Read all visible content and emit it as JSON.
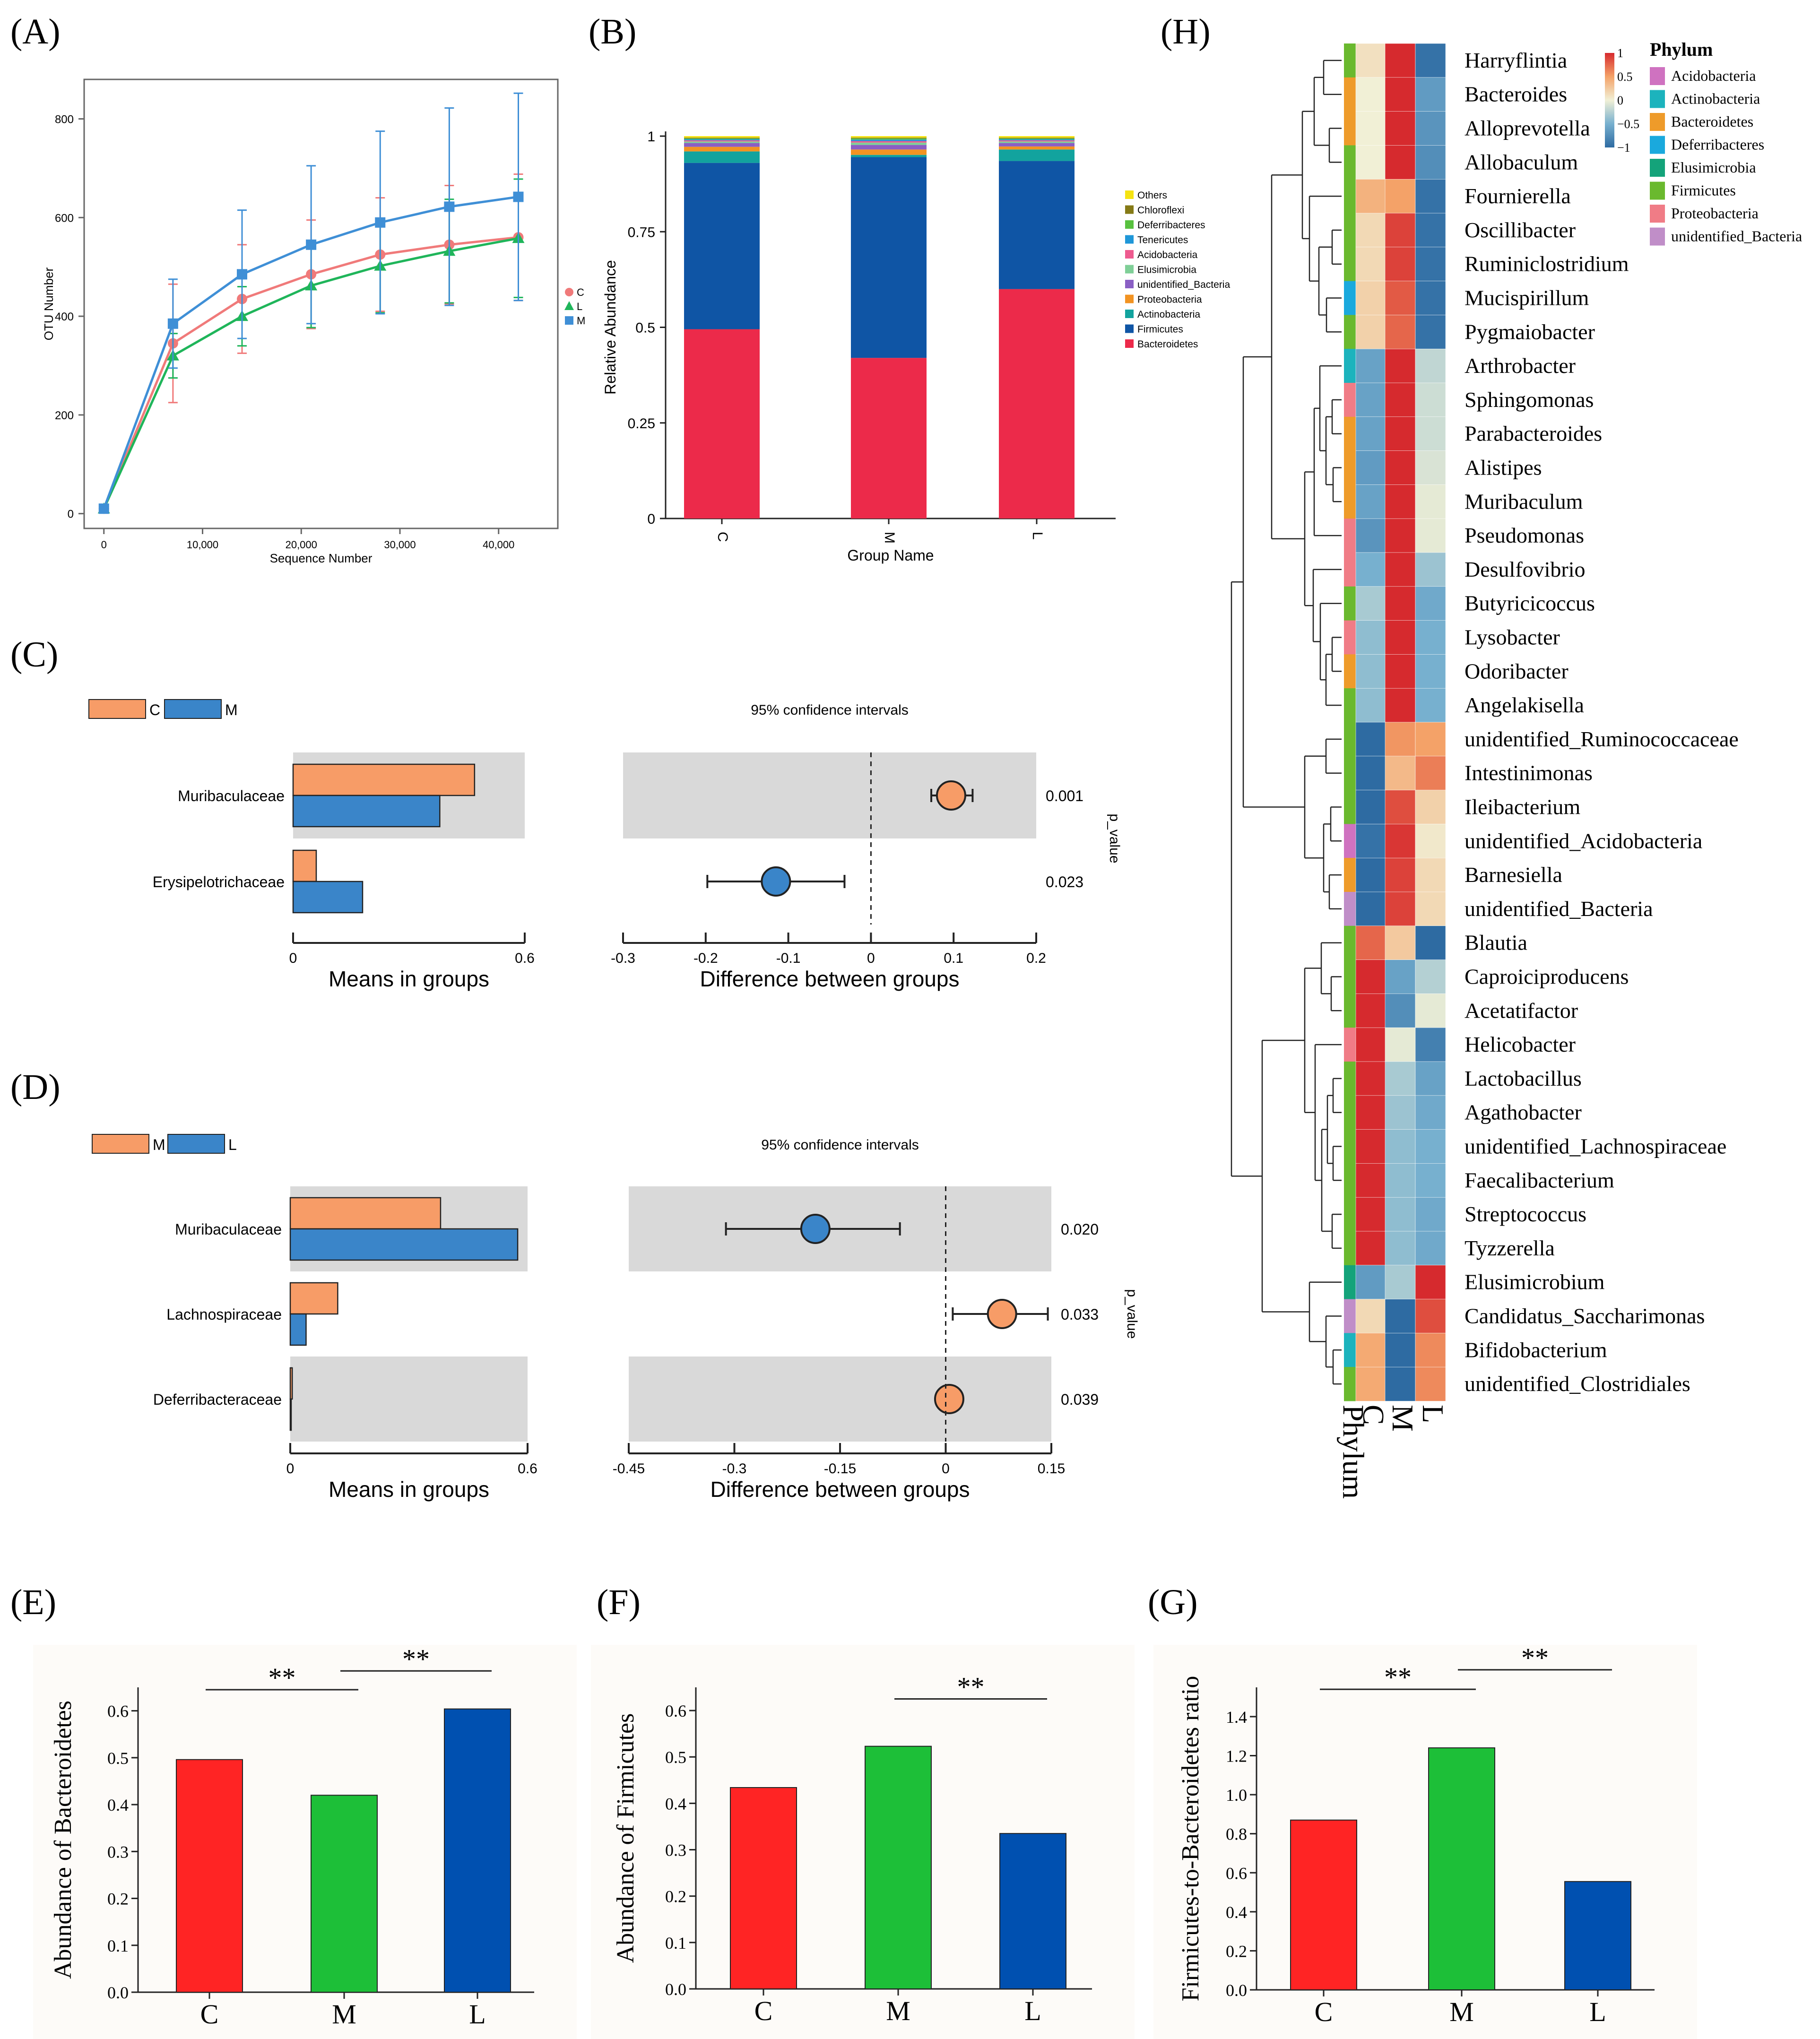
{
  "panel_labels": {
    "A": "(A)",
    "B": "(B)",
    "C": "(C)",
    "D": "(D)",
    "E": "(E)",
    "F": "(F)",
    "G": "(G)",
    "H": "(H)"
  },
  "chart_data": [
    {
      "id": "A",
      "type": "line",
      "xlabel": "Sequence Number",
      "ylabel": "OTU Number",
      "xlim": [
        -2000,
        46000
      ],
      "ylim": [
        -30,
        880
      ],
      "xticks": [
        0,
        10000,
        20000,
        30000,
        40000
      ],
      "xtick_labels": [
        "0",
        "10,000",
        "20,000",
        "30,000",
        "40,000"
      ],
      "yticks": [
        0,
        200,
        400,
        600,
        800
      ],
      "x": [
        0,
        7000,
        14000,
        21000,
        28000,
        35000,
        42000
      ],
      "series": [
        {
          "name": "C",
          "color": "#f07a7a",
          "marker": "circle",
          "values": [
            10,
            345,
            435,
            485,
            525,
            545,
            560
          ],
          "err": [
            0,
            120,
            110,
            110,
            115,
            120,
            128
          ]
        },
        {
          "name": "L",
          "color": "#1fb55a",
          "marker": "triangle",
          "values": [
            10,
            320,
            400,
            462,
            502,
            532,
            558
          ],
          "err": [
            0,
            45,
            60,
            85,
            95,
            105,
            120
          ]
        },
        {
          "name": "M",
          "color": "#3f8fd6",
          "marker": "square",
          "values": [
            10,
            385,
            485,
            545,
            590,
            622,
            642
          ],
          "err": [
            0,
            90,
            130,
            160,
            185,
            200,
            210
          ]
        }
      ],
      "legend": [
        "C",
        "L",
        "M"
      ]
    },
    {
      "id": "B",
      "type": "bar",
      "stacked": true,
      "xlabel": "Group Name",
      "ylabel": "Relative Abundance",
      "categories": [
        "C",
        "M",
        "L"
      ],
      "yticks": [
        0,
        0.25,
        0.5,
        0.75,
        1
      ],
      "ytick_labels": [
        "0",
        "0.25",
        "0.5",
        "0.75",
        "1"
      ],
      "series": [
        {
          "name": "Bacteroidetes",
          "color": "#ec2a4a",
          "values": [
            0.495,
            0.42,
            0.6
          ]
        },
        {
          "name": "Firmicutes",
          "color": "#0f55a5",
          "values": [
            0.435,
            0.525,
            0.335
          ]
        },
        {
          "name": "Actinobacteria",
          "color": "#12a39e",
          "values": [
            0.03,
            0.006,
            0.03
          ]
        },
        {
          "name": "Proteobacteria",
          "color": "#f29322",
          "values": [
            0.012,
            0.014,
            0.008
          ]
        },
        {
          "name": "unidentified_Bacteria",
          "color": "#8a5fc4",
          "values": [
            0.01,
            0.012,
            0.009
          ]
        },
        {
          "name": "Elusimicrobia",
          "color": "#7fcf97",
          "values": [
            0.004,
            0.006,
            0.004
          ]
        },
        {
          "name": "Acidobacteria",
          "color": "#ee5a8f",
          "values": [
            0.003,
            0.004,
            0.003
          ]
        },
        {
          "name": "Tenericutes",
          "color": "#1f97d8",
          "values": [
            0.003,
            0.004,
            0.003
          ]
        },
        {
          "name": "Deferribacteres",
          "color": "#58c13f",
          "values": [
            0.002,
            0.003,
            0.002
          ]
        },
        {
          "name": "Chloroflexi",
          "color": "#857a16",
          "values": [
            0.002,
            0.002,
            0.002
          ]
        },
        {
          "name": "Others",
          "color": "#f5e311",
          "values": [
            0.004,
            0.004,
            0.004
          ]
        }
      ],
      "legend": [
        "Others",
        "Chloroflexi",
        "Deferribacteres",
        "Tenericutes",
        "Acidobacteria",
        "Elusimicrobia",
        "unidentified_Bacteria",
        "Proteobacteria",
        "Actinobacteria",
        "Firmicutes",
        "Bacteroidetes"
      ]
    },
    {
      "id": "C",
      "type": "bar",
      "legend": [
        "C",
        "M"
      ],
      "left": {
        "xlabel": "Means in groups",
        "xlim": [
          0,
          0.6
        ],
        "xticks": [
          "0",
          "0.6"
        ]
      },
      "right": {
        "title": "95% confidence intervals",
        "xlabel": "Difference between groups",
        "xlim": [
          -0.3,
          0.2
        ],
        "xticks": [
          -0.3,
          -0.2,
          -0.1,
          0,
          0.1,
          0.2
        ],
        "xtick_labels": [
          "-0.3",
          "-0.2",
          "-0.1",
          "0",
          "0.1",
          "0.2"
        ]
      },
      "pvalue_label": "p_value",
      "rows": [
        {
          "name": "Muribaculaceae",
          "g1": 0.47,
          "g2": 0.38,
          "diff": 0.097,
          "ci": [
            0.073,
            0.123
          ],
          "p": "0.001",
          "color": "g1"
        },
        {
          "name": "Erysipelotrichaceae",
          "g1": 0.06,
          "g2": 0.18,
          "diff": -0.115,
          "ci": [
            -0.198,
            -0.032
          ],
          "p": "0.023",
          "color": "g2"
        }
      ]
    },
    {
      "id": "D",
      "type": "bar",
      "legend": [
        "M",
        "L"
      ],
      "left": {
        "xlabel": "Means in groups",
        "xlim": [
          0,
          0.6
        ],
        "xticks": [
          "0",
          "0.6"
        ]
      },
      "right": {
        "title": "95% confidence intervals",
        "xlabel": "Difference between groups",
        "xlim": [
          -0.45,
          0.15
        ],
        "xticks": [
          -0.45,
          -0.3,
          -0.15,
          0,
          0.15
        ],
        "xtick_labels": [
          "-0.45",
          "-0.3",
          "-0.15",
          "0",
          "0.15"
        ]
      },
      "pvalue_label": "p_value",
      "rows": [
        {
          "name": "Muribaculaceae",
          "g1": 0.38,
          "g2": 0.575,
          "diff": -0.185,
          "ci": [
            -0.312,
            -0.065
          ],
          "p": "0.020",
          "color": "g2"
        },
        {
          "name": "Lachnospiraceae",
          "g1": 0.12,
          "g2": 0.04,
          "diff": 0.08,
          "ci": [
            0.01,
            0.145
          ],
          "p": "0.033",
          "color": "g1"
        },
        {
          "name": "Deferribacteraceae",
          "g1": 0.005,
          "g2": 0.001,
          "diff": 0.005,
          "ci": [
            0.0,
            0.012
          ],
          "p": "0.039",
          "color": "g1"
        }
      ]
    },
    {
      "id": "E",
      "type": "bar",
      "ylabel": "Abundance of Bacteroidetes",
      "categories": [
        "C",
        "M",
        "L"
      ],
      "values": [
        0.496,
        0.42,
        0.604
      ],
      "colors": [
        "#ff2424",
        "#1dbf38",
        "#0050b0"
      ],
      "ylim": [
        0,
        0.65
      ],
      "yticks": [
        0,
        0.1,
        0.2,
        0.3,
        0.4,
        0.5,
        0.6
      ],
      "ytick_labels": [
        "0.0",
        "0.1",
        "0.2",
        "0.3",
        "0.4",
        "0.5",
        "0.6"
      ],
      "significance": [
        {
          "from": 0,
          "to": 1,
          "label": "**",
          "y": 0.645
        },
        {
          "from": 1,
          "to": 2,
          "label": "**",
          "y": 0.685
        }
      ]
    },
    {
      "id": "F",
      "type": "bar",
      "ylabel": "Abundance of Firmicutes",
      "categories": [
        "C",
        "M",
        "L"
      ],
      "values": [
        0.434,
        0.523,
        0.335
      ],
      "colors": [
        "#ff2424",
        "#1dbf38",
        "#0050b0"
      ],
      "ylim": [
        0,
        0.65
      ],
      "yticks": [
        0,
        0.1,
        0.2,
        0.3,
        0.4,
        0.5,
        0.6
      ],
      "ytick_labels": [
        "0.0",
        "0.1",
        "0.2",
        "0.3",
        "0.4",
        "0.5",
        "0.6"
      ],
      "significance": [
        {
          "from": 1,
          "to": 2,
          "label": "**",
          "y": 0.625
        }
      ]
    },
    {
      "id": "G",
      "type": "bar",
      "ylabel": "Firmicutes-to-Bacteroidetes ratio",
      "categories": [
        "C",
        "M",
        "L"
      ],
      "values": [
        0.87,
        1.24,
        0.555
      ],
      "colors": [
        "#ff2424",
        "#1dbf38",
        "#0050b0"
      ],
      "ylim": [
        0,
        1.55
      ],
      "yticks": [
        0,
        0.2,
        0.4,
        0.6,
        0.8,
        1.0,
        1.2,
        1.4
      ],
      "ytick_labels": [
        "0.0",
        "0.2",
        "0.4",
        "0.6",
        "0.8",
        "1.0",
        "1.2",
        "1.4"
      ],
      "significance": [
        {
          "from": 0,
          "to": 1,
          "label": "**",
          "y": 1.54
        },
        {
          "from": 1,
          "to": 2,
          "label": "**",
          "y": 1.64
        }
      ]
    },
    {
      "id": "H",
      "type": "heatmap",
      "columns": [
        "C",
        "M",
        "L"
      ],
      "column_header": "Phylum",
      "colorbar": {
        "ticks": [
          "1",
          "0.5",
          "0",
          "−0.5",
          "−1"
        ]
      },
      "legend_title": "Phylum",
      "phyla": [
        {
          "name": "Acidobacteria",
          "color": "#cf72c0"
        },
        {
          "name": "Actinobacteria",
          "color": "#1cb3bd"
        },
        {
          "name": "Bacteroidetes",
          "color": "#ee9b2a"
        },
        {
          "name": "Deferribacteres",
          "color": "#1aa9dd"
        },
        {
          "name": "Elusimicrobia",
          "color": "#14a37a"
        },
        {
          "name": "Firmicutes",
          "color": "#6ab92e"
        },
        {
          "name": "Proteobacteria",
          "color": "#f07c86"
        },
        {
          "name": "unidentified_Bacteria",
          "color": "#c08ec8"
        }
      ],
      "rows": [
        {
          "name": "Harryflintia",
          "phylum": 5,
          "values": [
            0.1,
            1.0,
            -0.95
          ]
        },
        {
          "name": "Bacteroides",
          "phylum": 2,
          "values": [
            0.0,
            1.0,
            -0.65
          ]
        },
        {
          "name": "Alloprevotella",
          "phylum": 2,
          "values": [
            0.0,
            1.0,
            -0.7
          ]
        },
        {
          "name": "Allobaculum",
          "phylum": 5,
          "values": [
            0.0,
            1.0,
            -0.75
          ]
        },
        {
          "name": "Fournierella",
          "phylum": 5,
          "values": [
            0.4,
            0.5,
            -0.95
          ]
        },
        {
          "name": "Oscillibacter",
          "phylum": 5,
          "values": [
            0.15,
            0.9,
            -0.95
          ]
        },
        {
          "name": "Ruminiclostridium",
          "phylum": 5,
          "values": [
            0.15,
            0.9,
            -0.95
          ]
        },
        {
          "name": "Mucispirillum",
          "phylum": 3,
          "values": [
            0.2,
            0.8,
            -0.95
          ]
        },
        {
          "name": "Pygmaiobacter",
          "phylum": 5,
          "values": [
            0.2,
            0.75,
            -0.95
          ]
        },
        {
          "name": "Arthrobacter",
          "phylum": 1,
          "values": [
            -0.6,
            1.0,
            -0.2
          ]
        },
        {
          "name": "Sphingomonas",
          "phylum": 6,
          "values": [
            -0.6,
            1.0,
            -0.15
          ]
        },
        {
          "name": "Parabacteroides",
          "phylum": 2,
          "values": [
            -0.6,
            1.0,
            -0.15
          ]
        },
        {
          "name": "Alistipes",
          "phylum": 2,
          "values": [
            -0.65,
            1.0,
            -0.1
          ]
        },
        {
          "name": "Muribaculum",
          "phylum": 2,
          "values": [
            -0.6,
            1.0,
            -0.05
          ]
        },
        {
          "name": "Pseudomonas",
          "phylum": 6,
          "values": [
            -0.7,
            1.0,
            -0.05
          ]
        },
        {
          "name": "Desulfovibrio",
          "phylum": 6,
          "values": [
            -0.5,
            1.0,
            -0.35
          ]
        },
        {
          "name": "Butyricicoccus",
          "phylum": 5,
          "values": [
            -0.3,
            1.0,
            -0.55
          ]
        },
        {
          "name": "Lysobacter",
          "phylum": 6,
          "values": [
            -0.4,
            1.0,
            -0.5
          ]
        },
        {
          "name": "Odoribacter",
          "phylum": 2,
          "values": [
            -0.4,
            1.0,
            -0.5
          ]
        },
        {
          "name": "Angelakisella",
          "phylum": 5,
          "values": [
            -0.4,
            1.0,
            -0.5
          ]
        },
        {
          "name": "unidentified_Ruminococcaceae",
          "phylum": 5,
          "values": [
            -1.0,
            0.55,
            0.5
          ]
        },
        {
          "name": "Intestinimonas",
          "phylum": 5,
          "values": [
            -1.0,
            0.35,
            0.65
          ]
        },
        {
          "name": "Ileibacterium",
          "phylum": 5,
          "values": [
            -1.0,
            0.85,
            0.2
          ]
        },
        {
          "name": "unidentified_Acidobacteria",
          "phylum": 0,
          "values": [
            -0.95,
            0.95,
            0.05
          ]
        },
        {
          "name": "Barnesiella",
          "phylum": 2,
          "values": [
            -1.0,
            0.9,
            0.15
          ]
        },
        {
          "name": "unidentified_Bacteria",
          "phylum": 7,
          "values": [
            -1.0,
            0.9,
            0.15
          ]
        },
        {
          "name": "Blautia",
          "phylum": 5,
          "values": [
            0.75,
            0.25,
            -1.0
          ]
        },
        {
          "name": "Caproiciproducens",
          "phylum": 5,
          "values": [
            1.0,
            -0.6,
            -0.25
          ]
        },
        {
          "name": "Acetatifactor",
          "phylum": 5,
          "values": [
            1.0,
            -0.75,
            -0.05
          ]
        },
        {
          "name": "Helicobacter",
          "phylum": 6,
          "values": [
            1.0,
            -0.05,
            -0.85
          ]
        },
        {
          "name": "Lactobacillus",
          "phylum": 5,
          "values": [
            1.0,
            -0.3,
            -0.6
          ]
        },
        {
          "name": "Agathobacter",
          "phylum": 5,
          "values": [
            1.0,
            -0.35,
            -0.55
          ]
        },
        {
          "name": "unidentified_Lachnospiraceae",
          "phylum": 5,
          "values": [
            1.0,
            -0.4,
            -0.5
          ]
        },
        {
          "name": "Faecalibacterium",
          "phylum": 5,
          "values": [
            1.0,
            -0.4,
            -0.5
          ]
        },
        {
          "name": "Streptococcus",
          "phylum": 5,
          "values": [
            1.0,
            -0.4,
            -0.55
          ]
        },
        {
          "name": "Tyzzerella",
          "phylum": 5,
          "values": [
            1.0,
            -0.4,
            -0.55
          ]
        },
        {
          "name": "Elusimicrobium",
          "phylum": 4,
          "values": [
            -0.65,
            -0.3,
            1.0
          ]
        },
        {
          "name": "Candidatus_Saccharimonas",
          "phylum": 7,
          "values": [
            0.15,
            -1.0,
            0.85
          ]
        },
        {
          "name": "Bifidobacterium",
          "phylum": 1,
          "values": [
            0.45,
            -1.0,
            0.6
          ]
        },
        {
          "name": "unidentified_Clostridiales",
          "phylum": 5,
          "values": [
            0.45,
            -1.0,
            0.6
          ]
        }
      ]
    }
  ]
}
